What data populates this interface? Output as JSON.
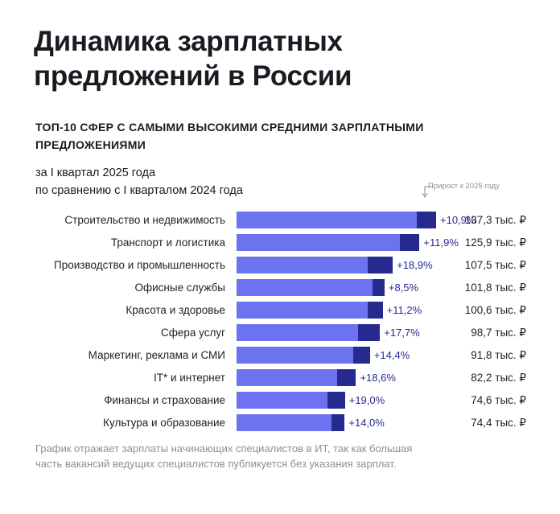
{
  "header": {
    "title": "Динамика зарплатных предложений в России",
    "subtitle": "ТОП-10 СФЕР С САМЫМИ ВЫСОКИМИ СРЕДНИМИ ЗАРПЛАТНЫМИ ПРЕДЛОЖЕНИЯМИ",
    "period_line1": "за I квартал 2025 года",
    "period_line2": "по сравнению с I кварталом 2024 года"
  },
  "legend_note": "Прирост к 2025 году",
  "footnote": "График отражает зарплаты начинающих специалистов в ИТ, так как большая часть вакансий ведущих специалистов публикуется без указания зарплат.",
  "colors": {
    "bar_base": "#6d73f0",
    "bar_growth": "#262a8e"
  },
  "chart_data": {
    "type": "bar",
    "orientation": "horizontal",
    "stacked": true,
    "unit": "тыс. ₽",
    "categories": [
      "Строительство и недвижимость",
      "Транспорт и логистика",
      "Производство и промышленность",
      "Офисные службы",
      "Красота и здоровье",
      "Сфера услуг",
      "Маркетинг, реклама и СМИ",
      "IT* и интернет",
      "Финансы и страхование",
      "Культура и образование"
    ],
    "values": [
      137.3,
      125.9,
      107.5,
      101.8,
      100.6,
      98.7,
      91.8,
      82.2,
      74.6,
      74.4
    ],
    "growth_pct": [
      10.9,
      11.9,
      18.9,
      8.5,
      11.2,
      17.7,
      14.4,
      18.6,
      19.0,
      14.0
    ],
    "value_labels": [
      "137,3 тыс. ₽",
      "125,9 тыс. ₽",
      "107,5 тыс. ₽",
      "101,8 тыс. ₽",
      "100,6 тыс. ₽",
      "98,7 тыс. ₽",
      "91,8 тыс. ₽",
      "82,2 тыс. ₽",
      "74,6 тыс. ₽",
      "74,4 тыс. ₽"
    ],
    "growth_labels": [
      "+10,9%",
      "+11,9%",
      "+18,9%",
      "+8,5%",
      "+11,2%",
      "+17,7%",
      "+14,4%",
      "+18,6%",
      "+19,0%",
      "+14,0%"
    ],
    "xlim": [
      0,
      137.3
    ],
    "grid": false
  }
}
